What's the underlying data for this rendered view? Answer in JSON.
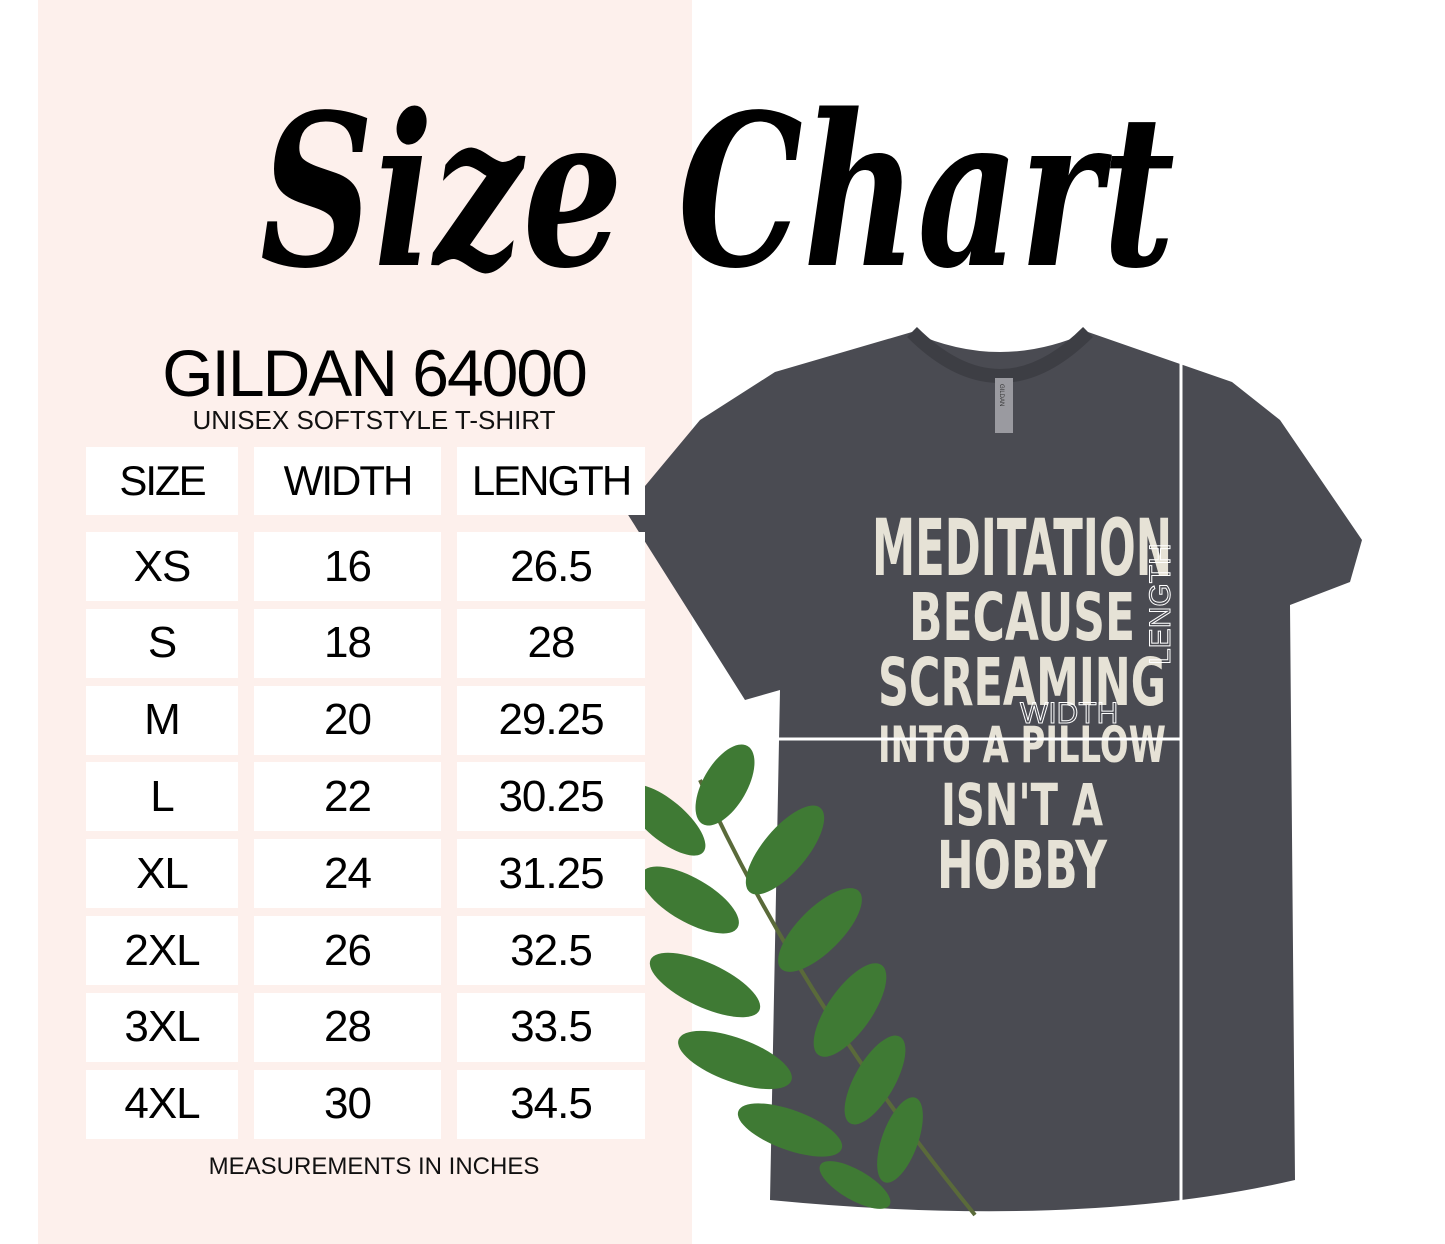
{
  "title": "Size Chart",
  "brand": "GILDAN 64000",
  "subtitle": "UNISEX SOFTSTYLE T-SHIRT",
  "table": {
    "headers": [
      "SIZE",
      "WIDTH",
      "LENGTH"
    ],
    "rows": [
      [
        "XS",
        "16",
        "26.5"
      ],
      [
        "S",
        "18",
        "28"
      ],
      [
        "M",
        "20",
        "29.25"
      ],
      [
        "L",
        "22",
        "30.25"
      ],
      [
        "XL",
        "24",
        "31.25"
      ],
      [
        "2XL",
        "26",
        "32.5"
      ],
      [
        "3XL",
        "28",
        "33.5"
      ],
      [
        "4XL",
        "30",
        "34.5"
      ]
    ]
  },
  "note": "MEASUREMENTS IN INCHES",
  "shirt": {
    "print_lines": [
      "MEDITATION",
      "BECAUSE",
      "SCREAMING",
      "INTO A PILLOW",
      "ISN'T A",
      "HOBBY"
    ],
    "tag": "GILDAN",
    "width_label": "WIDTH",
    "length_label": "LENGTH",
    "color": "#4a4b52"
  },
  "colors": {
    "panel": "#fdf0ec",
    "leaf": "#3f7a34"
  }
}
